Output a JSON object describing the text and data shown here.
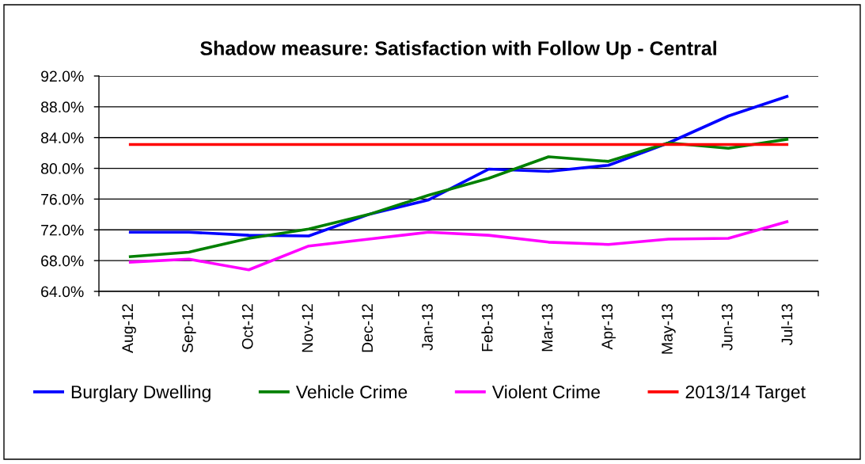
{
  "chart_data": {
    "type": "line",
    "title": "Shadow measure: Satisfaction with Follow Up - Central",
    "categories": [
      "Aug-12",
      "Sep-12",
      "Oct-12",
      "Nov-12",
      "Dec-12",
      "Jan-13",
      "Feb-13",
      "Mar-13",
      "Apr-13",
      "May-13",
      "Jun-13",
      "Jul-13"
    ],
    "series": [
      {
        "name": "Burglary Dwelling",
        "color": "#0000ff",
        "values": [
          71.7,
          71.7,
          71.3,
          71.2,
          74.0,
          75.9,
          79.9,
          79.6,
          80.4,
          83.3,
          86.8,
          89.4
        ]
      },
      {
        "name": "Vehicle Crime",
        "color": "#008000",
        "values": [
          68.5,
          69.1,
          70.9,
          72.1,
          74.0,
          76.5,
          78.7,
          81.5,
          80.9,
          83.3,
          82.6,
          83.8
        ]
      },
      {
        "name": "Violent Crime",
        "color": "#ff00ff",
        "values": [
          67.8,
          68.2,
          66.8,
          69.9,
          70.8,
          71.7,
          71.3,
          70.4,
          70.1,
          70.8,
          70.9,
          73.1
        ]
      },
      {
        "name": "2013/14 Target",
        "color": "#ff0000",
        "values": [
          83.1,
          83.1,
          83.1,
          83.1,
          83.1,
          83.1,
          83.1,
          83.1,
          83.1,
          83.1,
          83.1,
          83.1
        ]
      }
    ],
    "ylim": [
      64,
      92
    ],
    "yticks": [
      {
        "value": 64,
        "label": "64.0%"
      },
      {
        "value": 68,
        "label": "68.0%"
      },
      {
        "value": 72,
        "label": "72.0%"
      },
      {
        "value": 76,
        "label": "76.0%"
      },
      {
        "value": 80,
        "label": "80.0%"
      },
      {
        "value": 84,
        "label": "84.0%"
      },
      {
        "value": 88,
        "label": "88.0%"
      },
      {
        "value": 92,
        "label": "92.0%"
      }
    ],
    "grid": "y",
    "legend": "bottom",
    "marker": "none",
    "line_style": "solid"
  }
}
